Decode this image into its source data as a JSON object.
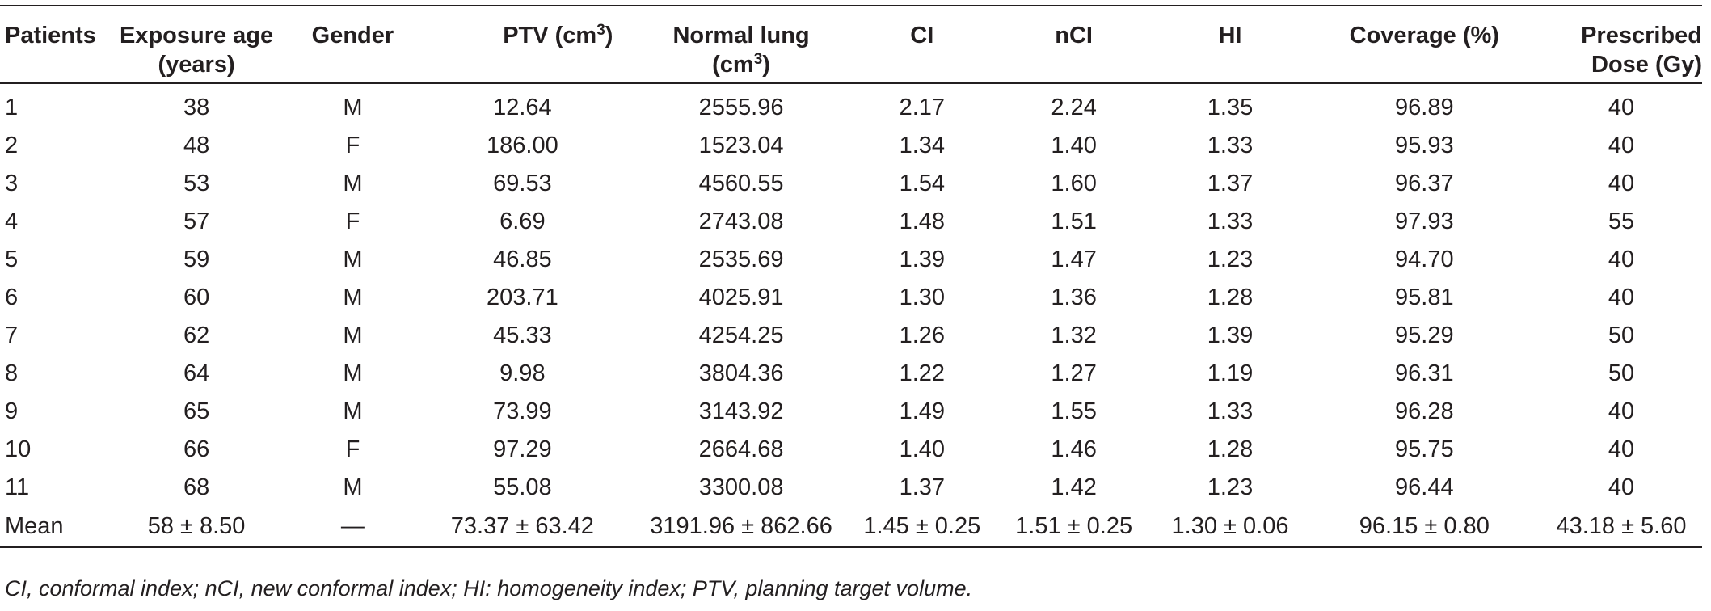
{
  "table": {
    "headers": {
      "patients": "Patients",
      "exposure_age_line1": "Exposure age",
      "exposure_age_line2": "(years)",
      "gender": "Gender",
      "ptv": "PTV (cm",
      "ptv_sup": "3",
      "ptv_close": ")",
      "normal_lung_line1": "Normal lung",
      "normal_lung_line2": "(cm",
      "normal_lung_sup": "3",
      "normal_lung_close": ")",
      "ci": "CI",
      "nci": "nCI",
      "hi": "HI",
      "coverage": "Coverage (%)",
      "dose_line1": "Prescribed",
      "dose_line2": "Dose (Gy)"
    },
    "rows": [
      [
        "1",
        "38",
        "M",
        "12.64",
        "2555.96",
        "2.17",
        "2.24",
        "1.35",
        "96.89",
        "40"
      ],
      [
        "2",
        "48",
        "F",
        "186.00",
        "1523.04",
        "1.34",
        "1.40",
        "1.33",
        "95.93",
        "40"
      ],
      [
        "3",
        "53",
        "M",
        "69.53",
        "4560.55",
        "1.54",
        "1.60",
        "1.37",
        "96.37",
        "40"
      ],
      [
        "4",
        "57",
        "F",
        "6.69",
        "2743.08",
        "1.48",
        "1.51",
        "1.33",
        "97.93",
        "55"
      ],
      [
        "5",
        "59",
        "M",
        "46.85",
        "2535.69",
        "1.39",
        "1.47",
        "1.23",
        "94.70",
        "40"
      ],
      [
        "6",
        "60",
        "M",
        "203.71",
        "4025.91",
        "1.30",
        "1.36",
        "1.28",
        "95.81",
        "40"
      ],
      [
        "7",
        "62",
        "M",
        "45.33",
        "4254.25",
        "1.26",
        "1.32",
        "1.39",
        "95.29",
        "50"
      ],
      [
        "8",
        "64",
        "M",
        "9.98",
        "3804.36",
        "1.22",
        "1.27",
        "1.19",
        "96.31",
        "50"
      ],
      [
        "9",
        "65",
        "M",
        "73.99",
        "3143.92",
        "1.49",
        "1.55",
        "1.33",
        "96.28",
        "40"
      ],
      [
        "10",
        "66",
        "F",
        "97.29",
        "2664.68",
        "1.40",
        "1.46",
        "1.28",
        "95.75",
        "40"
      ],
      [
        "11",
        "68",
        "M",
        "55.08",
        "3300.08",
        "1.37",
        "1.42",
        "1.23",
        "96.44",
        "40"
      ],
      [
        "Mean",
        "58 ± 8.50",
        "—",
        "73.37 ± 63.42",
        "3191.96 ± 862.66",
        "1.45 ± 0.25",
        "1.51 ± 0.25",
        "1.30 ± 0.06",
        "96.15 ± 0.80",
        "43.18 ± 5.60"
      ]
    ]
  },
  "footnote": "CI, conformal index; nCI, new conformal index; HI: homogeneity index; PTV, planning target volume."
}
